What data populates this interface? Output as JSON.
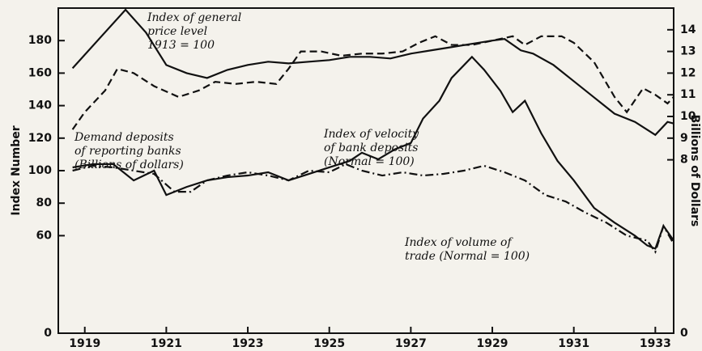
{
  "chart_data": {
    "type": "line",
    "ylabel": "Index Number",
    "y2label": "Billions of Dollars",
    "xlim": [
      1918.35,
      1933.45
    ],
    "xticks": [
      1919,
      1921,
      1923,
      1925,
      1927,
      1929,
      1931,
      1933
    ],
    "ylim": [
      0,
      200
    ],
    "yticks": [
      0,
      60,
      80,
      100,
      120,
      140,
      160,
      180
    ],
    "y2lim": [
      0,
      15
    ],
    "y2ticks": [
      0,
      8,
      9,
      10,
      11,
      12,
      13,
      14
    ],
    "grid": false,
    "series": [
      {
        "label": [
          "Index of general",
          "price level",
          "1913 = 100"
        ],
        "color": "#111111",
        "style": "solid",
        "x": [
          1918.7,
          1920.0,
          1920.5,
          1921.0,
          1921.5,
          1922.0,
          1922.5,
          1923.0,
          1923.5,
          1924.0,
          1924.5,
          1925.0,
          1925.5,
          1926.0,
          1926.5,
          1927.0,
          1927.5,
          1928.0,
          1928.5,
          1929.0,
          1929.3,
          1929.7,
          1930.0,
          1930.5,
          1931.0,
          1931.5,
          1932.0,
          1932.5,
          1933.0,
          1933.3,
          1933.45
        ],
        "values": [
          163,
          199,
          185,
          165,
          160,
          157,
          162,
          165,
          167,
          166,
          167,
          168,
          170,
          170,
          169,
          172,
          174,
          176,
          178,
          180,
          181,
          174,
          172,
          165,
          155,
          145,
          135,
          130,
          122,
          130,
          129
        ]
      },
      {
        "label": [
          "Demand deposits",
          "of reporting banks",
          "(Billions of dollars)"
        ],
        "color": "#111111",
        "style": "dashed",
        "axis": "y2",
        "x": [
          1918.7,
          1919.0,
          1919.5,
          1919.8,
          1920.2,
          1920.7,
          1921.3,
          1921.8,
          1922.2,
          1922.7,
          1923.2,
          1923.7,
          1924.0,
          1924.3,
          1924.8,
          1925.3,
          1925.8,
          1926.3,
          1926.8,
          1927.2,
          1927.6,
          1928.0,
          1928.5,
          1929.0,
          1929.5,
          1929.8,
          1930.2,
          1930.7,
          1931.0,
          1931.5,
          1932.0,
          1932.3,
          1932.7,
          1933.0,
          1933.3,
          1933.45
        ],
        "values": [
          9.4,
          10.2,
          11.2,
          12.2,
          12.0,
          11.4,
          10.9,
          11.2,
          11.6,
          11.5,
          11.6,
          11.5,
          12.2,
          13.0,
          13.0,
          12.8,
          12.9,
          12.9,
          13.0,
          13.4,
          13.7,
          13.3,
          13.3,
          13.5,
          13.7,
          13.3,
          13.7,
          13.7,
          13.4,
          12.5,
          10.9,
          10.2,
          11.3,
          11.0,
          10.6,
          10.9
        ]
      },
      {
        "label": [
          "Index of velocity",
          "of bank deposits",
          "(Normal = 100)"
        ],
        "color": "#111111",
        "style": "solid",
        "x": [
          1918.7,
          1919.2,
          1919.7,
          1920.2,
          1920.7,
          1921.0,
          1921.5,
          1922.0,
          1922.5,
          1923.0,
          1923.5,
          1924.0,
          1924.5,
          1925.0,
          1925.5,
          1925.8,
          1926.2,
          1926.6,
          1927.0,
          1927.3,
          1927.7,
          1928.0,
          1928.5,
          1928.8,
          1929.2,
          1929.5,
          1929.8,
          1930.2,
          1930.6,
          1931.0,
          1931.5,
          1932.0,
          1932.5,
          1932.8,
          1933.0,
          1933.2,
          1933.45
        ],
        "values": [
          102,
          104,
          104,
          94,
          100,
          85,
          90,
          94,
          96,
          97,
          99,
          94,
          98,
          102,
          106,
          111,
          107,
          113,
          117,
          132,
          143,
          157,
          170,
          162,
          149,
          136,
          143,
          123,
          106,
          94,
          77,
          68,
          60,
          54,
          52,
          66,
          57
        ]
      },
      {
        "label": [
          "Index of volume of",
          "trade (Normal = 100)"
        ],
        "color": "#111111",
        "style": "dashdot",
        "x": [
          1918.7,
          1919.2,
          1919.7,
          1920.2,
          1920.7,
          1921.2,
          1921.6,
          1922.0,
          1922.5,
          1923.0,
          1923.5,
          1924.0,
          1924.5,
          1925.0,
          1925.4,
          1925.8,
          1926.3,
          1926.8,
          1927.3,
          1927.8,
          1928.3,
          1928.8,
          1929.3,
          1929.8,
          1930.3,
          1930.8,
          1931.3,
          1931.8,
          1932.3,
          1932.8,
          1933.0,
          1933.2,
          1933.45
        ],
        "values": [
          100,
          103,
          102,
          100,
          98,
          87,
          87,
          94,
          97,
          99,
          97,
          94,
          100,
          99,
          104,
          100,
          97,
          99,
          97,
          98,
          100,
          103,
          99,
          94,
          85,
          81,
          74,
          68,
          60,
          57,
          50,
          66,
          55
        ]
      }
    ]
  }
}
